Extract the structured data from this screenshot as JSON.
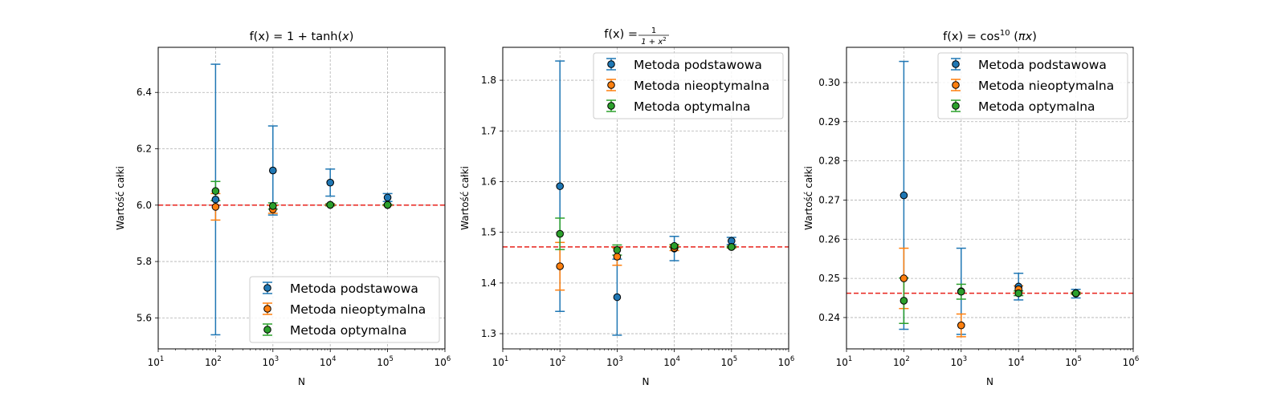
{
  "colors": {
    "metoda_podstawowa": "#1f77b4",
    "metoda_nieoptymalna": "#ff7f0e",
    "metoda_optymalna": "#2ca02c",
    "reference": "#e8221b",
    "grid": "#b0b0b0"
  },
  "chart_data": [
    {
      "type": "scatter",
      "title_prefix": "f(x) = ",
      "title_main": "1 + tanh(",
      "title_var": "x",
      "title_suffix": ")",
      "xlabel": "N",
      "ylabel": "Wartość całki",
      "xscale": "log",
      "xlim": [
        10,
        1000000
      ],
      "ylim": [
        5.49,
        6.56
      ],
      "yticks": [
        5.6,
        5.8,
        6.0,
        6.2,
        6.4
      ],
      "ytick_labels": [
        "5.6",
        "5.8",
        "6.0",
        "6.2",
        "6.4"
      ],
      "xtick_labels": [
        "10",
        "10",
        "10",
        "10",
        "10",
        "10"
      ],
      "xtick_exponents": [
        "1",
        "2",
        "3",
        "4",
        "5",
        "6"
      ],
      "reference_value": 6.0,
      "grid": true,
      "legend_position": "lower-right",
      "x": [
        100,
        1000,
        10000,
        100000
      ],
      "series": [
        {
          "name": "Metoda podstawowa",
          "color_key": "metoda_podstawowa",
          "values": [
            6.02,
            6.123,
            6.08,
            6.027
          ],
          "errors": [
            0.48,
            0.158,
            0.048,
            0.014
          ]
        },
        {
          "name": "Metoda nieoptymalna",
          "color_key": "metoda_nieoptymalna",
          "values": [
            5.994,
            5.985,
            6.001,
            6.0
          ],
          "errors": [
            0.047,
            0.014,
            0.004,
            0.002
          ]
        },
        {
          "name": "Metoda optymalna",
          "color_key": "metoda_optymalna",
          "values": [
            6.05,
            5.997,
            6.001,
            6.001
          ],
          "errors": [
            0.034,
            0.011,
            0.003,
            0.001
          ]
        }
      ]
    },
    {
      "type": "scatter",
      "title_prefix": "f(x) = ",
      "title_frac_num": "1",
      "title_frac_den": "1 + x",
      "title_frac_den_sup": "2",
      "xlabel": "N",
      "ylabel": "Wartość całki",
      "xscale": "log",
      "xlim": [
        10,
        1000000
      ],
      "ylim": [
        1.27,
        1.865
      ],
      "yticks": [
        1.3,
        1.4,
        1.5,
        1.6,
        1.7,
        1.8
      ],
      "ytick_labels": [
        "1.3",
        "1.4",
        "1.5",
        "1.6",
        "1.7",
        "1.8"
      ],
      "xtick_labels": [
        "10",
        "10",
        "10",
        "10",
        "10",
        "10"
      ],
      "xtick_exponents": [
        "1",
        "2",
        "3",
        "4",
        "5",
        "6"
      ],
      "reference_value": 1.4711,
      "grid": true,
      "legend_position": "upper-right",
      "x": [
        100,
        1000,
        10000,
        100000
      ],
      "series": [
        {
          "name": "Metoda podstawowa",
          "color_key": "metoda_podstawowa",
          "values": [
            1.591,
            1.372,
            1.468,
            1.483
          ],
          "errors": [
            0.247,
            0.075,
            0.024,
            0.007
          ]
        },
        {
          "name": "Metoda nieoptymalna",
          "color_key": "metoda_nieoptymalna",
          "values": [
            1.433,
            1.452,
            1.469,
            1.471
          ],
          "errors": [
            0.047,
            0.017,
            0.005,
            0.002
          ]
        },
        {
          "name": "Metoda optymalna",
          "color_key": "metoda_optymalna",
          "values": [
            1.497,
            1.465,
            1.473,
            1.471
          ],
          "errors": [
            0.031,
            0.01,
            0.003,
            0.001
          ]
        }
      ]
    },
    {
      "type": "scatter",
      "title_prefix": "f(x) = ",
      "title_main": "cos",
      "title_sup": "10",
      "title_paren_open": " (",
      "title_var": "πx",
      "title_suffix": ")",
      "xlabel": "N",
      "ylabel": "Wartość całki",
      "xscale": "log",
      "xlim": [
        10,
        1000000
      ],
      "ylim": [
        0.232,
        0.309
      ],
      "yticks": [
        0.24,
        0.25,
        0.26,
        0.27,
        0.28,
        0.29,
        0.3
      ],
      "ytick_labels": [
        "0.24",
        "0.25",
        "0.26",
        "0.27",
        "0.28",
        "0.29",
        "0.30"
      ],
      "xtick_labels": [
        "10",
        "10",
        "10",
        "10",
        "10",
        "10"
      ],
      "xtick_exponents": [
        "1",
        "2",
        "3",
        "4",
        "5",
        "6"
      ],
      "reference_value": 0.2462,
      "grid": true,
      "legend_position": "upper-right",
      "x": [
        100,
        1000,
        10000,
        100000
      ],
      "series": [
        {
          "name": "Metoda podstawowa",
          "color_key": "metoda_podstawowa",
          "values": [
            0.2712,
            0.2467,
            0.2479,
            0.2461
          ],
          "errors": [
            0.0342,
            0.011,
            0.0034,
            0.0011
          ]
        },
        {
          "name": "Metoda nieoptymalna",
          "color_key": "metoda_nieoptymalna",
          "values": [
            0.25,
            0.238,
            0.2472,
            0.2462
          ],
          "errors": [
            0.0077,
            0.0029,
            0.0009,
            0.0003
          ]
        },
        {
          "name": "Metoda optymalna",
          "color_key": "metoda_optymalna",
          "values": [
            0.2443,
            0.2466,
            0.2462,
            0.2462
          ],
          "errors": [
            0.0058,
            0.0019,
            0.0006,
            0.0002
          ]
        }
      ]
    }
  ]
}
